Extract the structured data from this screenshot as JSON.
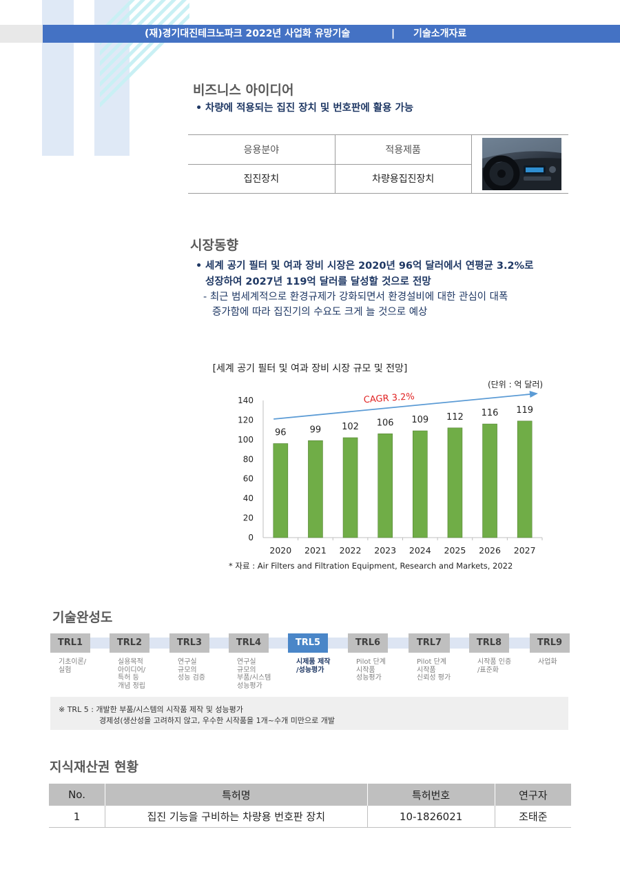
{
  "header": {
    "left": "(재)경기대진테크노파크 2022년 사업화 유망기술",
    "separator": "|",
    "right": "기술소개자료"
  },
  "business": {
    "title": "비즈니스 아이디어",
    "bullet": "차량에 적용되는 집진 장치 및 번호판에 활용 가능",
    "table": {
      "headers": [
        "응용분야",
        "적용제품"
      ],
      "row": [
        "집진장치",
        "차량용집진장치"
      ]
    },
    "image_icon": "car-dashboard-photo"
  },
  "market": {
    "title": "시장동향",
    "bullet_line1": "세계 공기 필터 및 여과 장비 시장은 2020년 96억 달러에서 연평균 3.2%로",
    "bullet_line2": "성장하여 2027년 119억 달러를 달성할 것으로 전망",
    "sub_line1": "- 최근 범세계적으로 환경규제가 강화되면서 환경설비에 대한 관심이 대폭",
    "sub_line2": "증가함에 따라 집진기의 수요도 크게 늘 것으로 예상"
  },
  "chart_data": {
    "type": "bar",
    "title": "[세계 공기 필터 및 여과 장비 시장 규모 및 전망]",
    "unit": "(단위 : 억 달러)",
    "categories": [
      "2020",
      "2021",
      "2022",
      "2023",
      "2024",
      "2025",
      "2026",
      "2027"
    ],
    "values": [
      96,
      99,
      102,
      106,
      109,
      112,
      116,
      119
    ],
    "ylim": [
      0,
      140
    ],
    "yticks": [
      0,
      20,
      40,
      60,
      80,
      100,
      120,
      140
    ],
    "annotation": "CAGR 3.2%",
    "source": "* 자료 : Air Filters and Filtration Equipment, Research and Markets, 2022",
    "colors": {
      "bar": "#70ad47",
      "bar_border": "#548235",
      "trend": "#5b9bd5",
      "annotation": "#e02020"
    }
  },
  "trl": {
    "title": "기술완성도",
    "levels": [
      {
        "label": "TRL1",
        "desc": "기초이론/\n실험"
      },
      {
        "label": "TRL2",
        "desc": "실용목적\n아이디어/\n특허 등\n개념 정립"
      },
      {
        "label": "TRL3",
        "desc": "연구실\n규모의\n성능 검증"
      },
      {
        "label": "TRL4",
        "desc": "연구실\n규모의\n부품/시스템\n성능평가"
      },
      {
        "label": "TRL5",
        "desc": "시제품 제작\n/성능평가"
      },
      {
        "label": "TRL6",
        "desc": "Pilot 단계\n시작품\n성능평가"
      },
      {
        "label": "TRL7",
        "desc": "Pilot 단계\n시작품\n신뢰성 평가"
      },
      {
        "label": "TRL8",
        "desc": "시작품 인증\n/표준화"
      },
      {
        "label": "TRL9",
        "desc": "사업화"
      }
    ],
    "active_index": 4,
    "note_line1": "※ TRL 5  : 개발한 부품/시스템의 시작품 제작 및 성능평가",
    "note_line2": "경제성(생산성을 고려하지 않고, 우수한 시작품을 1개~수개 미만으로 개발"
  },
  "ip": {
    "title": "지식재산권 현황",
    "headers": [
      "No.",
      "특허명",
      "특허번호",
      "연구자"
    ],
    "rows": [
      [
        "1",
        "집진 기능을 구비하는 차량용 번호판 장치",
        "10-1826021",
        "조태준"
      ]
    ]
  }
}
